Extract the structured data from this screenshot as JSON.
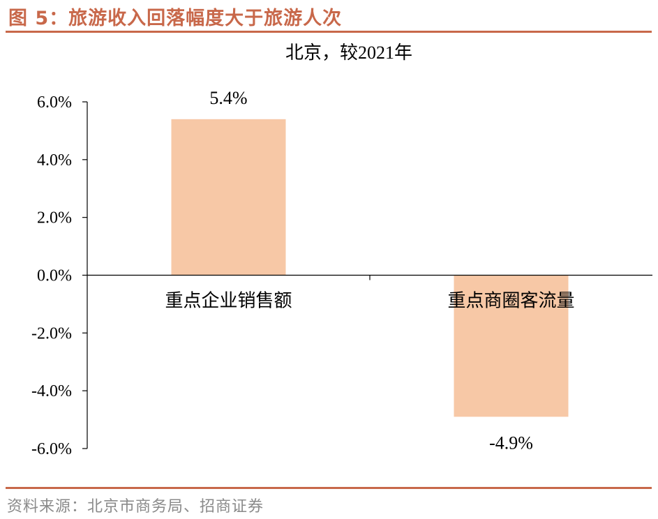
{
  "figure_title": "图 5：旅游收入回落幅度大于旅游人次",
  "source": "资料来源：北京市商务局、招商证券",
  "colors": {
    "bar": "#f7c8a6",
    "accent": "#c8684a",
    "axis": "#000000"
  },
  "chart_data": {
    "type": "bar",
    "title": "北京，较2021年",
    "categories": [
      "重点企业销售额",
      "重点商圈客流量"
    ],
    "values": [
      5.4,
      -4.9
    ],
    "data_labels": [
      "5.4%",
      "-4.9%"
    ],
    "ylim": [
      -6,
      6
    ],
    "yticks": [
      6,
      4,
      2,
      0,
      -2,
      -4,
      -6
    ],
    "ytick_labels": [
      "6.0%",
      "4.0%",
      "2.0%",
      "0.0%",
      "-2.0%",
      "-4.0%",
      "-6.0%"
    ],
    "xlabel": "",
    "ylabel": "",
    "grid": false,
    "legend": "none"
  }
}
